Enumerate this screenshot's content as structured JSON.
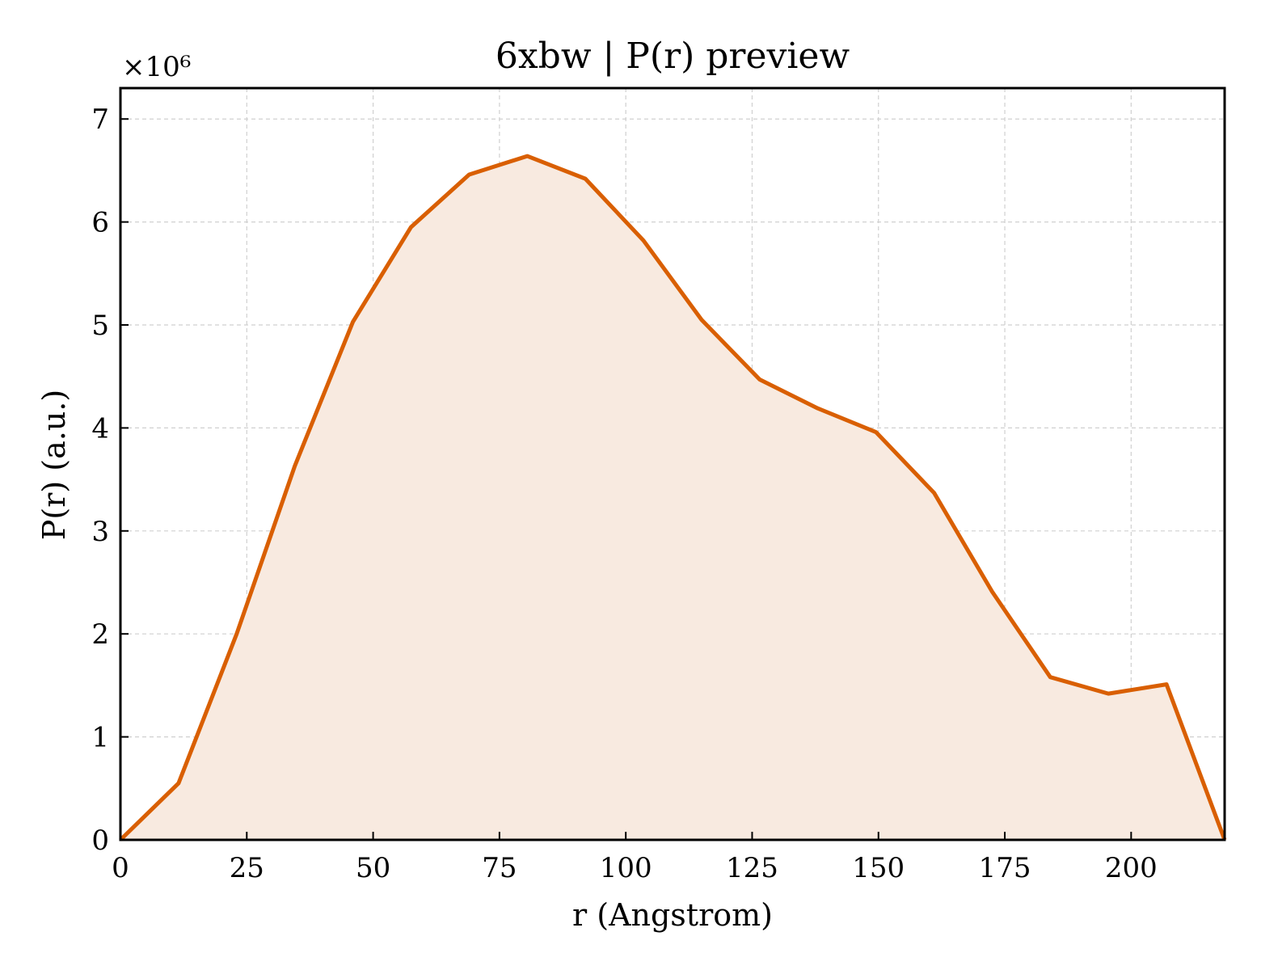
{
  "chart_data": {
    "type": "area",
    "title": "6xbw | P(r) preview",
    "xlabel": "r (Angstrom)",
    "ylabel": "P(r) (a.u.)",
    "y_multiplier_label": "×10⁶",
    "xlim": [
      0,
      218.5
    ],
    "ylim": [
      0,
      7.3
    ],
    "grid": true,
    "x_ticks": [
      0,
      25,
      50,
      75,
      100,
      125,
      150,
      175,
      200
    ],
    "x_tick_labels": [
      "0",
      "25",
      "50",
      "75",
      "100",
      "125",
      "150",
      "175",
      "200"
    ],
    "y_ticks": [
      0,
      1,
      2,
      3,
      4,
      5,
      6,
      7
    ],
    "y_tick_labels": [
      "0",
      "1",
      "2",
      "3",
      "4",
      "5",
      "6",
      "7"
    ],
    "line_color": "#D95F02",
    "fill_color": "#F8EAE0",
    "series": [
      {
        "x": [
          0,
          11.5,
          23.0,
          34.5,
          46.0,
          57.5,
          69.0,
          80.5,
          92.0,
          103.5,
          115.0,
          126.5,
          138.0,
          149.5,
          161.0,
          172.5,
          184.0,
          195.5,
          207.0,
          218.5
        ],
        "y": [
          0.0,
          0.55,
          2.0,
          3.63,
          5.03,
          5.95,
          6.46,
          6.64,
          6.42,
          5.82,
          5.05,
          4.47,
          4.19,
          3.96,
          3.37,
          2.41,
          1.58,
          1.42,
          1.51,
          0.0
        ]
      }
    ]
  }
}
